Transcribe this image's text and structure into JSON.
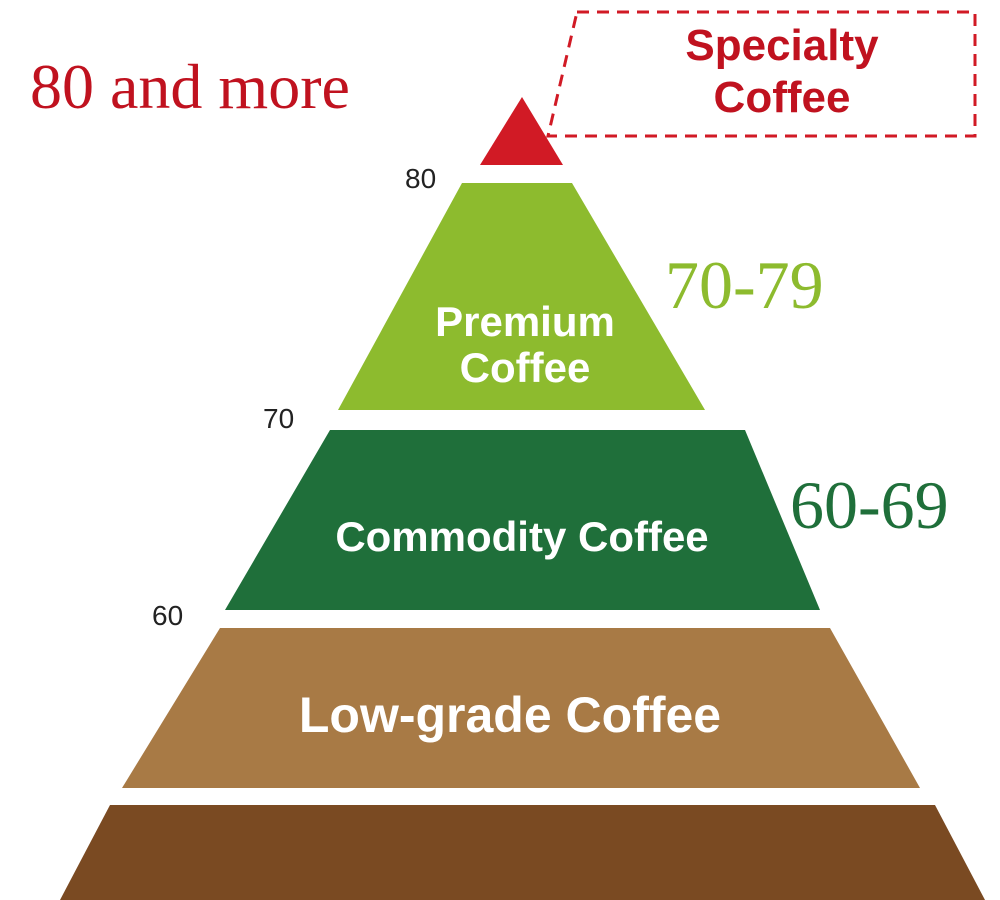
{
  "top_label": "80 and more",
  "callout": {
    "lines": [
      "Specialty",
      "Coffee"
    ]
  },
  "tiers": [
    {
      "lines": [
        "Premium",
        "Coffee"
      ],
      "range": "70-79",
      "threshold": "80"
    },
    {
      "lines": [
        "Commodity Coffee"
      ],
      "range": "60-69",
      "threshold": "70"
    },
    {
      "lines": [
        "Low-grade Coffee"
      ],
      "threshold": "60"
    }
  ]
}
